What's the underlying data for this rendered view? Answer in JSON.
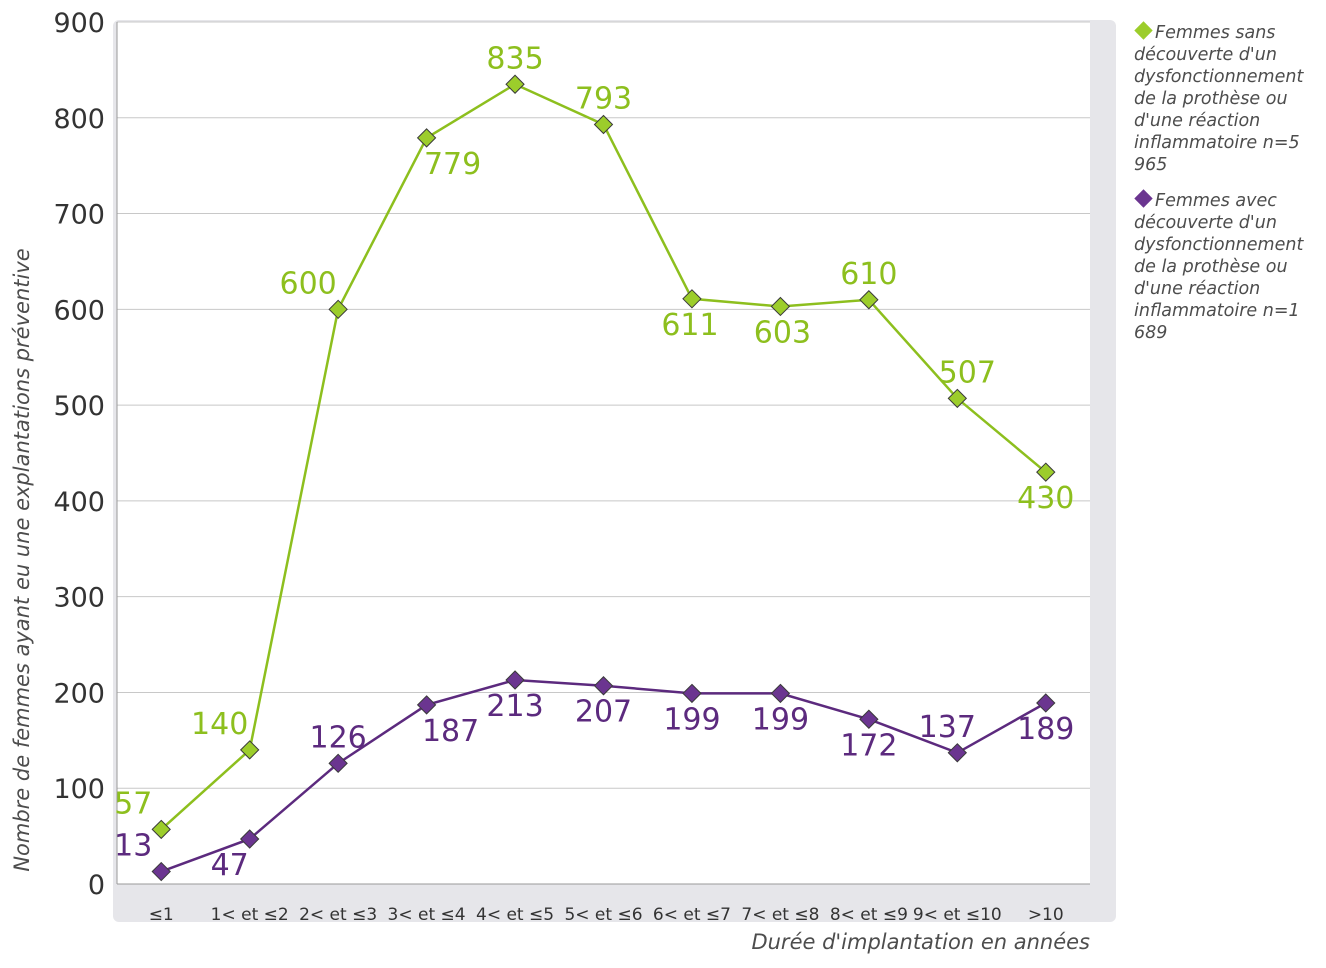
{
  "chart_data": {
    "type": "line",
    "xlabel": "Durée d'implantation en années",
    "ylabel": "Nombre de femmes ayant eu une explantations préventive",
    "ylim": [
      0,
      900
    ],
    "yticks": [
      0,
      100,
      200,
      300,
      400,
      500,
      600,
      700,
      800,
      900
    ],
    "grid": true,
    "legend_position": "right",
    "categories": [
      "≤1",
      "1< et ≤2",
      "2< et ≤3",
      "3< et ≤4",
      "4< et ≤5",
      "5< et ≤6",
      "6< et ≤7",
      "7< et ≤8",
      "8< et ≤9",
      "9< et ≤10",
      ">10"
    ],
    "series": [
      {
        "name": "Femmes sans découverte d'un dysfonctionnement de la prothèse ou d'une réaction inflammatoire n=5 965",
        "values": [
          57,
          140,
          600,
          779,
          835,
          793,
          611,
          603,
          610,
          507,
          430
        ],
        "color": "#8dbf1e",
        "marker_color": "#9ccd2b"
      },
      {
        "name": "Femmes avec découverte d'un dysfonctionnement de la prothèse ou d'une réaction inflammatoire n=1 689",
        "values": [
          13,
          47,
          126,
          187,
          213,
          207,
          199,
          199,
          172,
          137,
          189
        ],
        "color": "#5c2a7e",
        "marker_color": "#6b3590"
      }
    ]
  }
}
